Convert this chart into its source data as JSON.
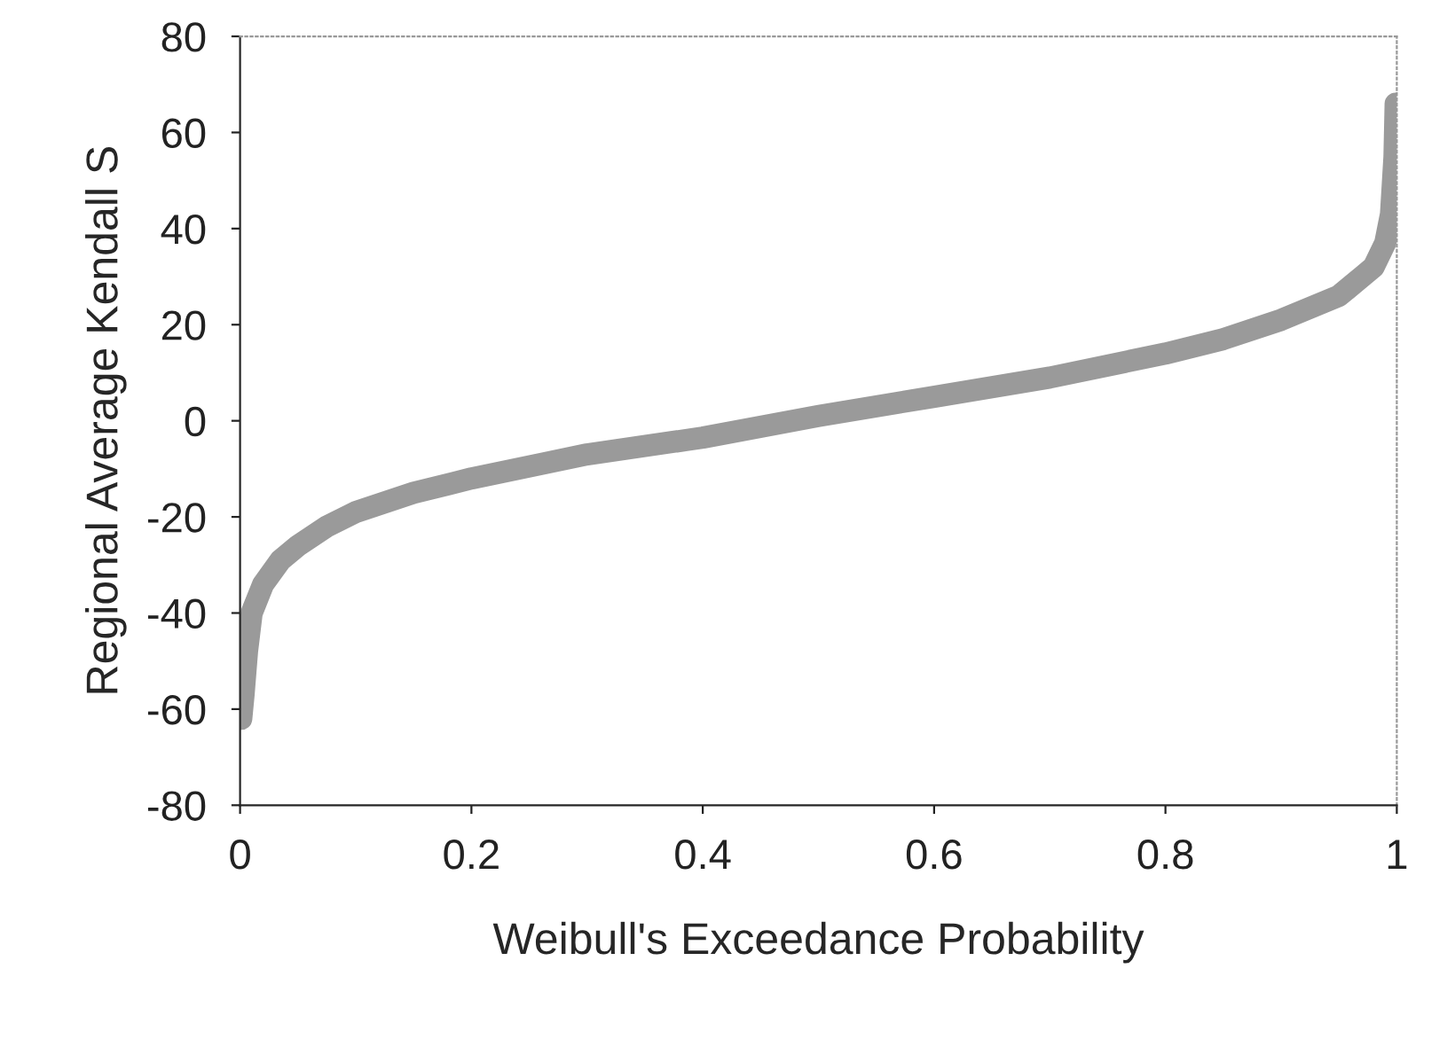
{
  "chart_data": {
    "type": "line",
    "xlabel": "Weibull's Exceedance Probability",
    "ylabel": "Regional Average Kendall S",
    "xlim": [
      0,
      1
    ],
    "xticks": [
      0,
      0.2,
      0.4,
      0.6,
      0.8,
      1
    ],
    "ylim": [
      -80,
      80
    ],
    "yticks": [
      -80,
      -60,
      -40,
      -20,
      0,
      20,
      40,
      60,
      80
    ],
    "grid": false,
    "legend": false,
    "series": [
      {
        "color": "#9a9a9a",
        "x": [
          0.001,
          0.003,
          0.006,
          0.01,
          0.02,
          0.035,
          0.05,
          0.075,
          0.1,
          0.15,
          0.2,
          0.3,
          0.4,
          0.5,
          0.6,
          0.7,
          0.8,
          0.85,
          0.9,
          0.95,
          0.98,
          0.99,
          0.995,
          0.998,
          0.999
        ],
        "values": [
          -62,
          -57,
          -48,
          -40,
          -34,
          -29,
          -26,
          -22,
          -19,
          -15,
          -12,
          -7,
          -3.5,
          1,
          5,
          9,
          14,
          17,
          21,
          26,
          32,
          37,
          43,
          55,
          66
        ]
      }
    ]
  }
}
